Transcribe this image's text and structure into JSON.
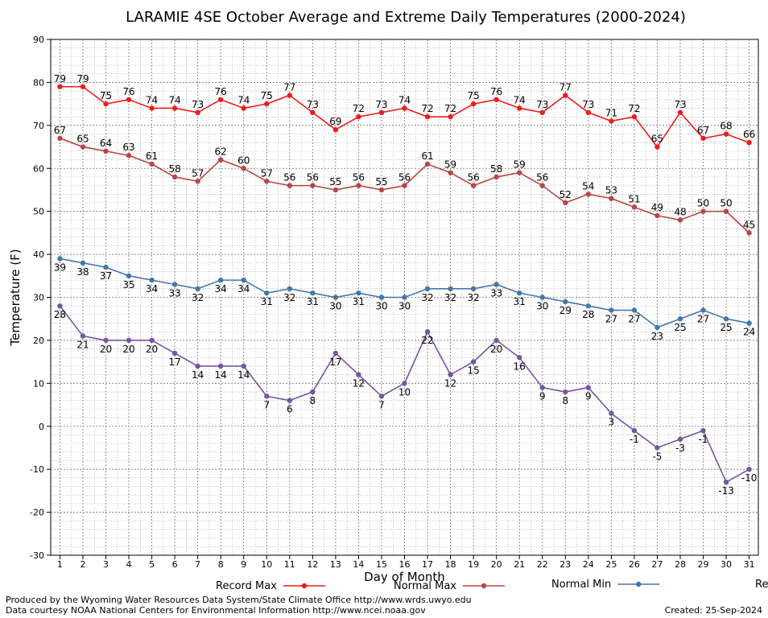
{
  "chart_data": {
    "type": "line",
    "title": "LARAMIE 4SE October Average and Extreme Daily Temperatures (2000-2024)",
    "xlabel": "Day of Month",
    "ylabel": "Temperature (F)",
    "ylim": [
      -30,
      90
    ],
    "xlim": [
      0.6,
      31.4
    ],
    "y_ticks": [
      -30,
      -20,
      -10,
      0,
      10,
      20,
      30,
      40,
      50,
      60,
      70,
      80,
      90
    ],
    "x": [
      1,
      2,
      3,
      4,
      5,
      6,
      7,
      8,
      9,
      10,
      11,
      12,
      13,
      14,
      15,
      16,
      17,
      18,
      19,
      20,
      21,
      22,
      23,
      24,
      25,
      26,
      27,
      28,
      29,
      30,
      31
    ],
    "grid": true,
    "legend_position": "bottom",
    "series": [
      {
        "name": "Record Max",
        "color": "#ee1c1c",
        "label_side": "above",
        "values": [
          79,
          79,
          75,
          76,
          74,
          74,
          73,
          76,
          74,
          75,
          77,
          73,
          69,
          72,
          73,
          74,
          72,
          72,
          75,
          76,
          74,
          73,
          77,
          73,
          71,
          72,
          65,
          73,
          67,
          68,
          66
        ]
      },
      {
        "name": "Normal Max",
        "color": "#bb4444",
        "label_side": "above",
        "values": [
          67,
          65,
          64,
          63,
          61,
          58,
          57,
          62,
          60,
          57,
          56,
          56,
          55,
          56,
          55,
          56,
          61,
          59,
          56,
          58,
          59,
          56,
          52,
          54,
          53,
          51,
          49,
          48,
          50,
          50,
          45
        ]
      },
      {
        "name": "Normal Min",
        "color": "#4477aa",
        "label_side": "below",
        "values": [
          39,
          38,
          37,
          35,
          34,
          33,
          32,
          34,
          34,
          31,
          32,
          31,
          30,
          31,
          30,
          30,
          32,
          32,
          32,
          33,
          31,
          30,
          29,
          28,
          27,
          27,
          23,
          25,
          27,
          25,
          24
        ]
      },
      {
        "name": "Record Min",
        "color": "#7755a0",
        "label_side": "below",
        "values": [
          28,
          21,
          20,
          20,
          20,
          17,
          14,
          14,
          14,
          7,
          6,
          8,
          17,
          12,
          7,
          10,
          22,
          12,
          15,
          20,
          16,
          9,
          8,
          9,
          3,
          -1,
          -5,
          -3,
          -1,
          -13,
          -10
        ]
      }
    ]
  },
  "footer": {
    "line1": "Produced by the Wyoming Water Resources Data System/State Climate Office http://www.wrds.uwyo.edu",
    "line2": "Data courtesy NOAA National Centers for Environmental Information http://www.ncei.noaa.gov",
    "created": "Created:  25-Sep-2024"
  }
}
